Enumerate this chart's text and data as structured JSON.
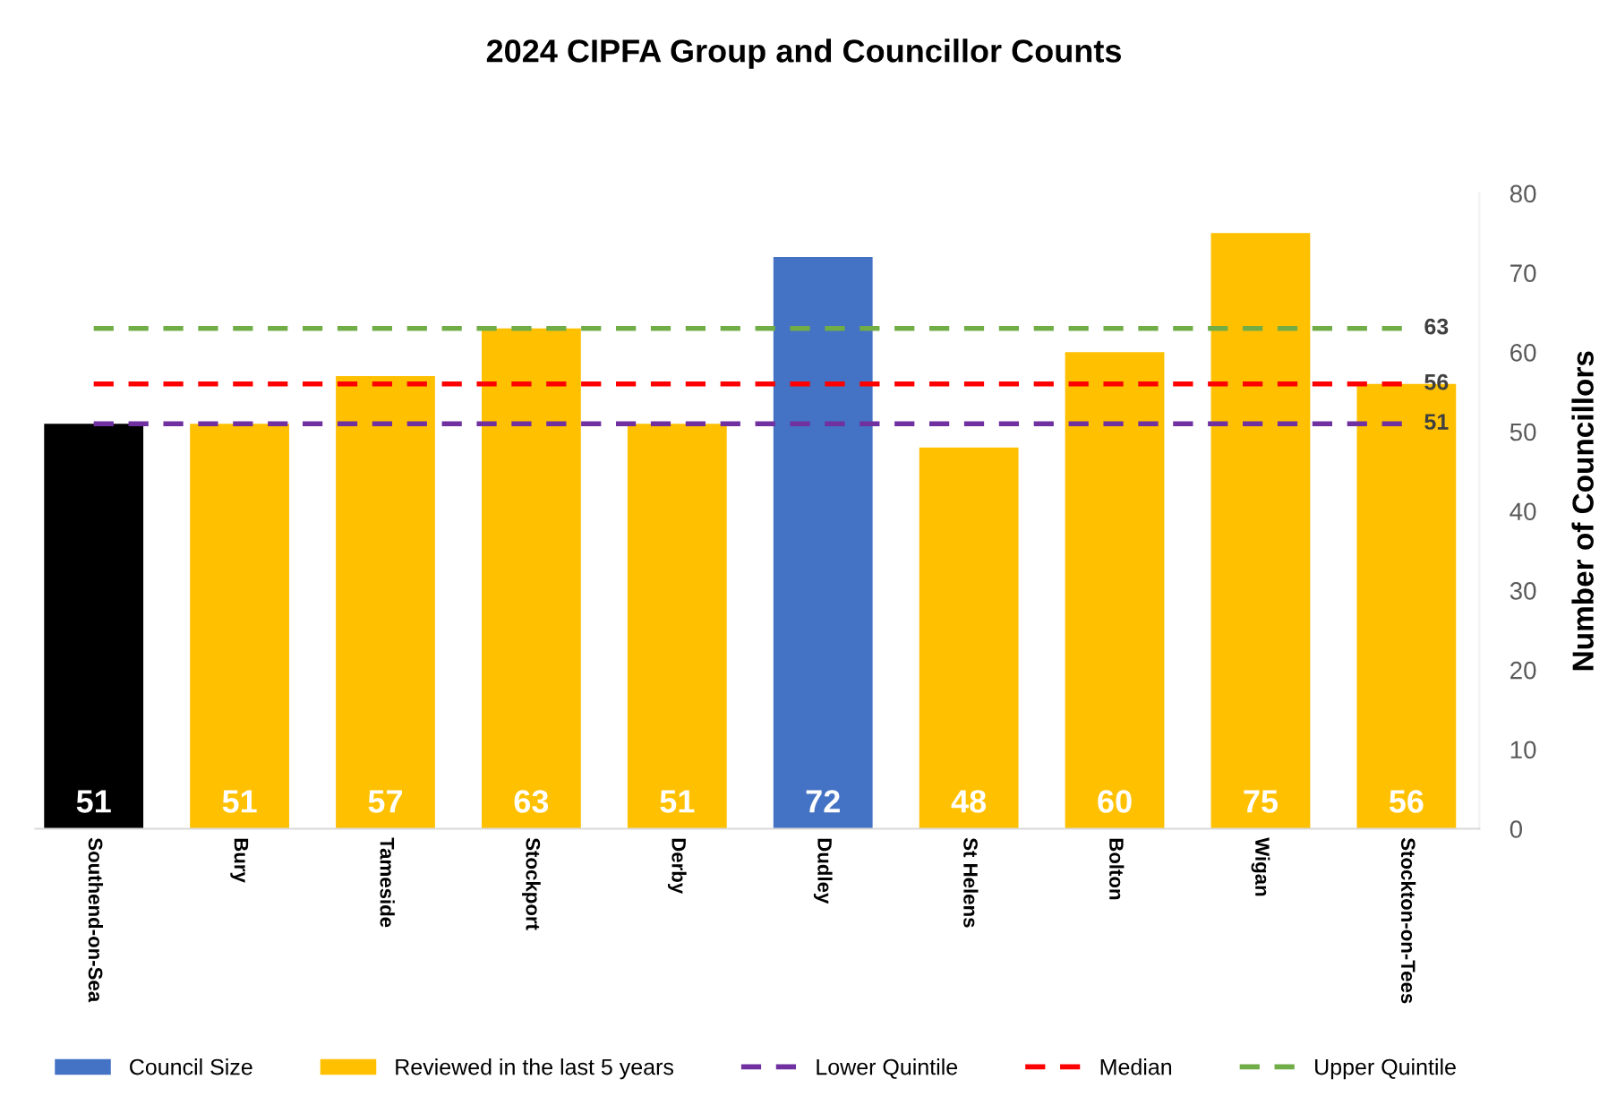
{
  "chart_data": {
    "type": "bar",
    "title": "2024 CIPFA Group and Councillor Counts",
    "ylabel": "Number of Councillors",
    "categories": [
      "Southend-on-Sea",
      "Bury",
      "Tameside",
      "Stockport",
      "Derby",
      "Dudley",
      "St Helens",
      "Bolton",
      "Wigan",
      "Stockton-on-Tees"
    ],
    "series": [
      {
        "color": "#000000",
        "values": [
          51,
          null,
          null,
          null,
          null,
          null,
          null,
          null,
          null,
          null
        ],
        "value_labels": [
          "51",
          null,
          null,
          null,
          null,
          null,
          null,
          null,
          null,
          null
        ]
      },
      {
        "name": "Council Size",
        "color": "#4472c4",
        "values": [
          null,
          null,
          null,
          null,
          null,
          72,
          null,
          null,
          null,
          null
        ],
        "value_labels": [
          null,
          null,
          null,
          null,
          null,
          "72",
          null,
          null,
          null,
          null
        ]
      },
      {
        "name": "Reviewed in the last 5 years",
        "color": "#ffc000",
        "values": [
          null,
          51,
          57,
          63,
          51,
          null,
          48,
          60,
          75,
          56
        ],
        "value_labels": [
          null,
          "51",
          "57",
          "63",
          "51",
          null,
          "48",
          "60",
          "75",
          "56"
        ]
      },
      {
        "type": "line",
        "name": "Lower Quintile",
        "color": "#7030a0",
        "line_style": "dashed",
        "values": [
          51,
          51,
          51,
          51,
          51,
          51,
          51,
          51,
          51,
          51
        ],
        "value_labels": [
          null,
          null,
          null,
          null,
          null,
          null,
          null,
          null,
          null,
          "51"
        ]
      },
      {
        "type": "line",
        "name": "Median",
        "color": "#ff0000",
        "line_style": "dashed",
        "values": [
          56,
          56,
          56,
          56,
          56,
          56,
          56,
          56,
          56,
          56
        ],
        "value_labels": [
          null,
          null,
          null,
          null,
          null,
          null,
          null,
          null,
          null,
          "56"
        ]
      },
      {
        "type": "line",
        "name": "Upper Quintile",
        "color": "#70ad47",
        "line_style": "dashed",
        "values": [
          63,
          63,
          63,
          63,
          63,
          63,
          63,
          63,
          63,
          63
        ],
        "value_labels": [
          null,
          null,
          null,
          null,
          null,
          null,
          null,
          null,
          null,
          "63"
        ]
      }
    ],
    "ylim": [
      0,
      80
    ],
    "yticks": [
      0,
      10,
      20,
      30,
      40,
      50,
      60,
      70,
      80
    ],
    "grid": false,
    "legend": "bottom"
  }
}
